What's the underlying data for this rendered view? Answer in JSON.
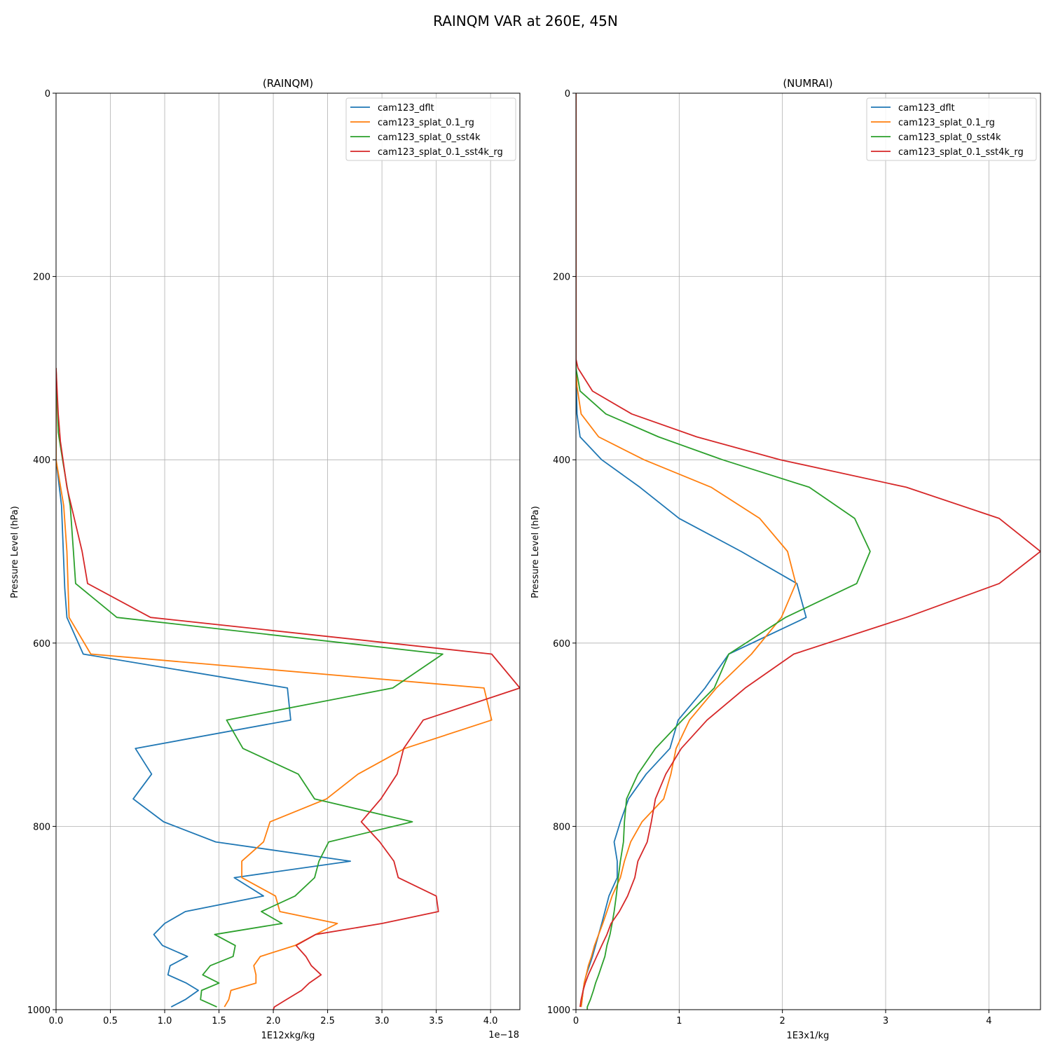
{
  "figure": {
    "title": "RAINQM VAR at 260E, 45N"
  },
  "chart_data": [
    {
      "type": "line",
      "title": "(RAINQM)",
      "xlabel": "1E12xkg/kg",
      "ylabel": "Pressure Level (hPa)",
      "x_offset_label": "1e−18",
      "xlim": [
        0,
        4.27
      ],
      "ylim": [
        1000,
        0
      ],
      "y_inverted": true,
      "grid": true,
      "legend_position": "upper right",
      "xticks": [
        0,
        0.5,
        1,
        1.5,
        2,
        2.5,
        3,
        3.5,
        4
      ],
      "xtick_labels": [
        "0.0",
        "0.5",
        "1.0",
        "1.5",
        "2.0",
        "2.5",
        "3.0",
        "3.5",
        "4.0"
      ],
      "yticks": [
        0,
        200,
        400,
        600,
        800,
        1000
      ],
      "ytick_labels": [
        "0",
        "200",
        "400",
        "600",
        "800",
        "1000"
      ],
      "series": [
        {
          "name": "cam123_dflt",
          "color": "#1f77b4",
          "points": [
            [
              0,
              300
            ],
            [
              0,
              400
            ],
            [
              0.05,
              450
            ],
            [
              0.08,
              540
            ],
            [
              0.1,
              572
            ],
            [
              0.25,
              612
            ],
            [
              2.13,
              649
            ],
            [
              2.16,
              684
            ],
            [
              0.73,
              715
            ],
            [
              0.88,
              743
            ],
            [
              0.71,
              770
            ],
            [
              0.99,
              795
            ],
            [
              1.47,
              817
            ],
            [
              2.71,
              838
            ],
            [
              1.64,
              856
            ],
            [
              1.91,
              876
            ],
            [
              1.19,
              893
            ],
            [
              1.0,
              906
            ],
            [
              0.9,
              918
            ],
            [
              0.98,
              930
            ],
            [
              1.21,
              942
            ],
            [
              1.05,
              952
            ],
            [
              1.03,
              962
            ],
            [
              1.2,
              971
            ],
            [
              1.31,
              979
            ],
            [
              1.19,
              989
            ],
            [
              1.06,
              997
            ]
          ]
        },
        {
          "name": "cam123_splat_0.1_rg",
          "color": "#ff7f0e",
          "points": [
            [
              0,
              300
            ],
            [
              0,
              400
            ],
            [
              0.07,
              450
            ],
            [
              0.1,
              500
            ],
            [
              0.12,
              572
            ],
            [
              0.32,
              612
            ],
            [
              3.94,
              649
            ],
            [
              4.01,
              684
            ],
            [
              3.21,
              715
            ],
            [
              2.78,
              743
            ],
            [
              2.49,
              770
            ],
            [
              1.97,
              795
            ],
            [
              1.91,
              817
            ],
            [
              1.71,
              838
            ],
            [
              1.71,
              856
            ],
            [
              2.02,
              876
            ],
            [
              2.06,
              893
            ],
            [
              2.59,
              906
            ],
            [
              2.39,
              918
            ],
            [
              2.2,
              930
            ],
            [
              1.88,
              942
            ],
            [
              1.82,
              952
            ],
            [
              1.84,
              962
            ],
            [
              1.84,
              971
            ],
            [
              1.61,
              979
            ],
            [
              1.59,
              989
            ],
            [
              1.55,
              997
            ]
          ]
        },
        {
          "name": "cam123_splat_0_sst4k",
          "color": "#2ca02c",
          "points": [
            [
              0,
              300
            ],
            [
              0.02,
              370
            ],
            [
              0.06,
              400
            ],
            [
              0.13,
              450
            ],
            [
              0.16,
              500
            ],
            [
              0.18,
              535
            ],
            [
              0.56,
              572
            ],
            [
              3.56,
              612
            ],
            [
              3.1,
              649
            ],
            [
              1.57,
              684
            ],
            [
              1.72,
              715
            ],
            [
              2.23,
              743
            ],
            [
              2.38,
              770
            ],
            [
              3.28,
              795
            ],
            [
              2.51,
              817
            ],
            [
              2.42,
              838
            ],
            [
              2.38,
              856
            ],
            [
              2.2,
              876
            ],
            [
              1.89,
              893
            ],
            [
              2.08,
              906
            ],
            [
              1.46,
              918
            ],
            [
              1.65,
              930
            ],
            [
              1.63,
              942
            ],
            [
              1.42,
              952
            ],
            [
              1.35,
              962
            ],
            [
              1.5,
              971
            ],
            [
              1.34,
              979
            ],
            [
              1.33,
              989
            ],
            [
              1.48,
              997
            ]
          ]
        },
        {
          "name": "cam123_splat_0.1_sst4k_rg",
          "color": "#d62728",
          "points": [
            [
              0,
              300
            ],
            [
              0.02,
              350
            ],
            [
              0.04,
              380
            ],
            [
              0.1,
              430
            ],
            [
              0.24,
              500
            ],
            [
              0.29,
              535
            ],
            [
              0.87,
              572
            ],
            [
              4.01,
              612
            ],
            [
              4.27,
              649
            ],
            [
              3.38,
              684
            ],
            [
              3.2,
              715
            ],
            [
              3.14,
              743
            ],
            [
              2.99,
              770
            ],
            [
              2.81,
              795
            ],
            [
              2.98,
              817
            ],
            [
              3.11,
              838
            ],
            [
              3.15,
              856
            ],
            [
              3.5,
              876
            ],
            [
              3.52,
              893
            ],
            [
              3.0,
              906
            ],
            [
              2.39,
              918
            ],
            [
              2.21,
              930
            ],
            [
              2.3,
              942
            ],
            [
              2.35,
              952
            ],
            [
              2.44,
              962
            ],
            [
              2.33,
              971
            ],
            [
              2.26,
              979
            ],
            [
              2.12,
              989
            ],
            [
              2.01,
              997
            ],
            [
              2.0,
              1000
            ]
          ]
        }
      ]
    },
    {
      "type": "line",
      "title": "(NUMRAI)",
      "xlabel": "1E3x1/kg",
      "ylabel": "Pressure Level (hPa)",
      "xlim": [
        0,
        4.5
      ],
      "ylim": [
        1000,
        0
      ],
      "y_inverted": true,
      "grid": true,
      "legend_position": "upper right",
      "xticks": [
        0,
        1,
        2,
        3,
        4
      ],
      "xtick_labels": [
        "0",
        "1",
        "2",
        "3",
        "4"
      ],
      "yticks": [
        0,
        200,
        400,
        600,
        800,
        1000
      ],
      "ytick_labels": [
        "0",
        "200",
        "400",
        "600",
        "800",
        "1000"
      ],
      "series": [
        {
          "name": "cam123_dflt",
          "color": "#1f77b4",
          "points": [
            [
              0,
              0
            ],
            [
              0,
              300
            ],
            [
              0.01,
              350
            ],
            [
              0.04,
              375
            ],
            [
              0.25,
              400
            ],
            [
              0.62,
              430
            ],
            [
              1.0,
              464
            ],
            [
              1.6,
              500
            ],
            [
              2.14,
              535
            ],
            [
              2.23,
              572
            ],
            [
              1.48,
              612
            ],
            [
              1.25,
              649
            ],
            [
              0.99,
              684
            ],
            [
              0.91,
              715
            ],
            [
              0.68,
              743
            ],
            [
              0.51,
              770
            ],
            [
              0.43,
              795
            ],
            [
              0.37,
              817
            ],
            [
              0.4,
              838
            ],
            [
              0.4,
              856
            ],
            [
              0.32,
              876
            ],
            [
              0.28,
              893
            ],
            [
              0.25,
              906
            ],
            [
              0.22,
              918
            ],
            [
              0.19,
              930
            ],
            [
              0.16,
              942
            ],
            [
              0.13,
              952
            ],
            [
              0.1,
              962
            ],
            [
              0.08,
              971
            ],
            [
              0.07,
              979
            ],
            [
              0.06,
              989
            ],
            [
              0.05,
              997
            ]
          ]
        },
        {
          "name": "cam123_splat_0.1_rg",
          "color": "#ff7f0e",
          "points": [
            [
              0,
              0
            ],
            [
              0,
              300
            ],
            [
              0.01,
              320
            ],
            [
              0.05,
              350
            ],
            [
              0.22,
              375
            ],
            [
              0.66,
              400
            ],
            [
              1.31,
              430
            ],
            [
              1.78,
              464
            ],
            [
              2.05,
              500
            ],
            [
              2.13,
              535
            ],
            [
              1.99,
              572
            ],
            [
              1.7,
              612
            ],
            [
              1.36,
              649
            ],
            [
              1.1,
              684
            ],
            [
              0.97,
              715
            ],
            [
              0.92,
              743
            ],
            [
              0.85,
              770
            ],
            [
              0.64,
              795
            ],
            [
              0.53,
              817
            ],
            [
              0.47,
              838
            ],
            [
              0.43,
              856
            ],
            [
              0.35,
              876
            ],
            [
              0.3,
              893
            ],
            [
              0.26,
              906
            ],
            [
              0.22,
              918
            ],
            [
              0.18,
              930
            ],
            [
              0.15,
              942
            ],
            [
              0.12,
              952
            ],
            [
              0.1,
              962
            ],
            [
              0.08,
              971
            ],
            [
              0.07,
              979
            ],
            [
              0.06,
              989
            ],
            [
              0.05,
              997
            ]
          ]
        },
        {
          "name": "cam123_splat_0_sst4k",
          "color": "#2ca02c",
          "points": [
            [
              0,
              0
            ],
            [
              0,
              300
            ],
            [
              0.04,
              325
            ],
            [
              0.29,
              350
            ],
            [
              0.8,
              375
            ],
            [
              1.42,
              400
            ],
            [
              2.26,
              430
            ],
            [
              2.7,
              464
            ],
            [
              2.85,
              500
            ],
            [
              2.72,
              535
            ],
            [
              2.03,
              572
            ],
            [
              1.48,
              612
            ],
            [
              1.34,
              649
            ],
            [
              1.03,
              684
            ],
            [
              0.77,
              715
            ],
            [
              0.6,
              743
            ],
            [
              0.49,
              770
            ],
            [
              0.47,
              795
            ],
            [
              0.46,
              817
            ],
            [
              0.43,
              838
            ],
            [
              0.41,
              856
            ],
            [
              0.39,
              876
            ],
            [
              0.37,
              893
            ],
            [
              0.35,
              906
            ],
            [
              0.33,
              918
            ],
            [
              0.3,
              930
            ],
            [
              0.28,
              942
            ],
            [
              0.25,
              952
            ],
            [
              0.22,
              962
            ],
            [
              0.19,
              971
            ],
            [
              0.17,
              979
            ],
            [
              0.14,
              989
            ],
            [
              0.11,
              997
            ],
            [
              0.11,
              1000
            ]
          ]
        },
        {
          "name": "cam123_splat_0.1_sst4k_rg",
          "color": "#d62728",
          "points": [
            [
              0,
              0
            ],
            [
              0,
              290
            ],
            [
              0.02,
              300
            ],
            [
              0.16,
              325
            ],
            [
              0.54,
              350
            ],
            [
              1.17,
              375
            ],
            [
              1.98,
              400
            ],
            [
              3.2,
              430
            ],
            [
              4.1,
              464
            ],
            [
              4.5,
              500
            ],
            [
              4.1,
              535
            ],
            [
              3.2,
              572
            ],
            [
              2.11,
              612
            ],
            [
              1.64,
              649
            ],
            [
              1.27,
              684
            ],
            [
              1.02,
              715
            ],
            [
              0.87,
              743
            ],
            [
              0.77,
              770
            ],
            [
              0.73,
              795
            ],
            [
              0.69,
              817
            ],
            [
              0.6,
              838
            ],
            [
              0.57,
              856
            ],
            [
              0.5,
              876
            ],
            [
              0.42,
              893
            ],
            [
              0.34,
              906
            ],
            [
              0.3,
              918
            ],
            [
              0.25,
              930
            ],
            [
              0.2,
              942
            ],
            [
              0.16,
              952
            ],
            [
              0.12,
              962
            ],
            [
              0.09,
              971
            ],
            [
              0.07,
              979
            ],
            [
              0.05,
              989
            ],
            [
              0.04,
              997
            ]
          ]
        }
      ]
    }
  ]
}
